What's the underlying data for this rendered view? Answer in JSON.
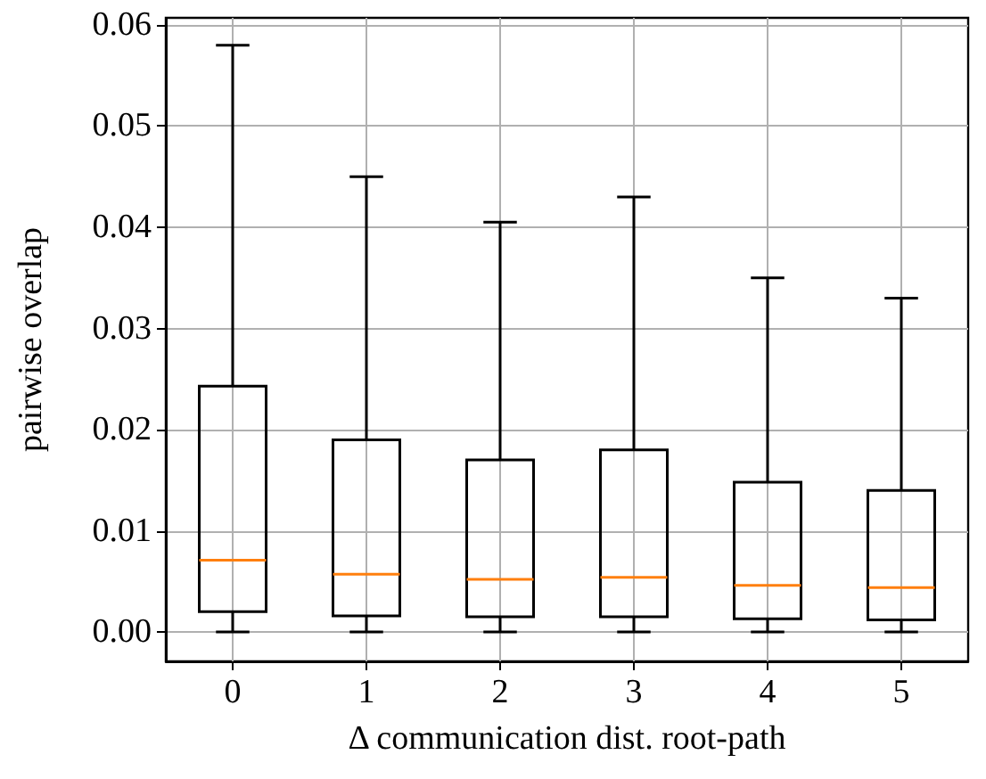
{
  "chart_data": {
    "type": "box",
    "xlabel": "Δ communication dist. root-path",
    "ylabel": "pairwise overlap",
    "categories": [
      "0",
      "1",
      "2",
      "3",
      "4",
      "5"
    ],
    "series": [
      {
        "color": "#000000",
        "boxes": [
          {
            "low": 0,
            "q1": 0.002,
            "median": 0.0071,
            "q3": 0.0243,
            "high": 0.058
          },
          {
            "low": 0,
            "q1": 0.0016,
            "median": 0.0057,
            "q3": 0.019,
            "high": 0.045
          },
          {
            "low": 0,
            "q1": 0.0015,
            "median": 0.0052,
            "q3": 0.017,
            "high": 0.0405
          },
          {
            "low": 0,
            "q1": 0.0015,
            "median": 0.0054,
            "q3": 0.018,
            "high": 0.043
          },
          {
            "low": 0,
            "q1": 0.0013,
            "median": 0.0046,
            "q3": 0.0148,
            "high": 0.035
          },
          {
            "low": 0,
            "q1": 0.0012,
            "median": 0.0044,
            "q3": 0.014,
            "high": 0.033
          }
        ]
      }
    ],
    "ylim": [
      -0.0029,
      0.0607
    ],
    "yticks": [
      {
        "value": 0,
        "label": "0.00"
      },
      {
        "value": 0.01,
        "label": "0.01"
      },
      {
        "value": 0.02,
        "label": "0.02"
      },
      {
        "value": 0.03,
        "label": "0.03"
      },
      {
        "value": 0.04,
        "label": "0.04"
      },
      {
        "value": 0.05,
        "label": "0.05"
      },
      {
        "value": 0.06,
        "label": "0.06"
      }
    ],
    "grid": true
  }
}
